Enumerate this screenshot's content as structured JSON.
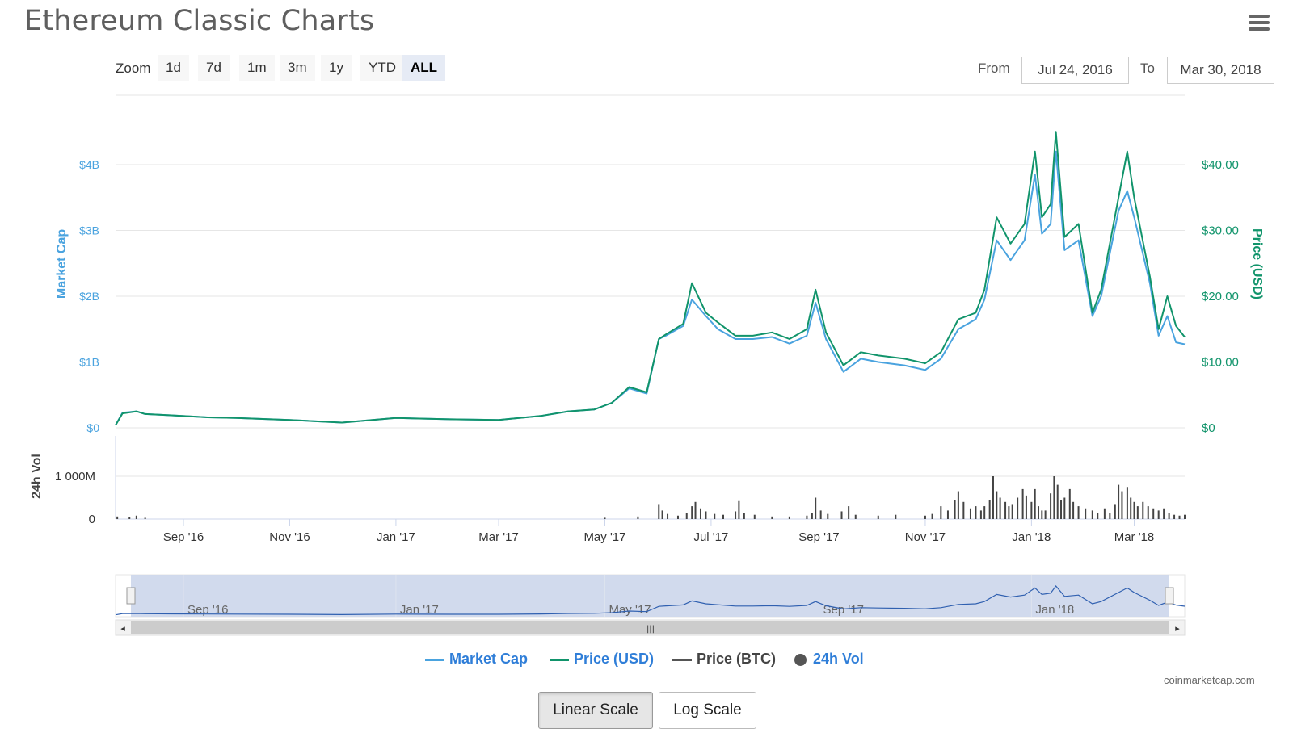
{
  "title": "Ethereum Classic Charts",
  "zoom": {
    "label": "Zoom",
    "buttons": [
      "1d",
      "7d",
      "1m",
      "3m",
      "1y",
      "YTD",
      "ALL"
    ],
    "active": "ALL"
  },
  "range": {
    "from_label": "From",
    "from_value": "Jul 24, 2016",
    "to_label": "To",
    "to_value": "Mar 30, 2018"
  },
  "credit": "coinmarketcap.com",
  "scale_buttons": {
    "linear": "Linear Scale",
    "log": "Log Scale",
    "active": "linear"
  },
  "colors": {
    "market_cap": "#4aa3df",
    "price_usd": "#11946b",
    "price_btc": "#555555",
    "volume": "#444444",
    "legend_text": "#2f7ed8",
    "navigator_fill": "#ccd6eb",
    "navigator_line": "#3060b0"
  },
  "chart_data": {
    "type": "line",
    "x_range": [
      "2016-07-24",
      "2018-03-30"
    ],
    "x_ticks": [
      {
        "date": "2016-09-01",
        "label": "Sep '16"
      },
      {
        "date": "2016-11-01",
        "label": "Nov '16"
      },
      {
        "date": "2017-01-01",
        "label": "Jan '17"
      },
      {
        "date": "2017-03-01",
        "label": "Mar '17"
      },
      {
        "date": "2017-05-01",
        "label": "May '17"
      },
      {
        "date": "2017-07-01",
        "label": "Jul '17"
      },
      {
        "date": "2017-09-01",
        "label": "Sep '17"
      },
      {
        "date": "2017-11-01",
        "label": "Nov '17"
      },
      {
        "date": "2018-01-01",
        "label": "Jan '18"
      },
      {
        "date": "2018-03-01",
        "label": "Mar '18"
      }
    ],
    "navigator_ticks": [
      {
        "date": "2016-09-01",
        "label": "Sep '16"
      },
      {
        "date": "2017-01-01",
        "label": "Jan '17"
      },
      {
        "date": "2017-05-01",
        "label": "May '17"
      },
      {
        "date": "2017-09-01",
        "label": "Sep '17"
      },
      {
        "date": "2018-01-01",
        "label": "Jan '18"
      }
    ],
    "y_left": {
      "label": "Market Cap",
      "ylim": [
        0,
        4000000000
      ],
      "ticks": [
        "$0",
        "$1B",
        "$2B",
        "$3B",
        "$4B"
      ]
    },
    "y_right": {
      "label": "Price (USD)",
      "ylim": [
        0,
        40
      ],
      "ticks": [
        "$0",
        "$10.00",
        "$20.00",
        "$30.00",
        "$40.00"
      ]
    },
    "volume_axis": {
      "label": "24h Vol",
      "ylim": [
        0,
        1000000000
      ],
      "ticks": [
        "0",
        "1 000M"
      ]
    },
    "series": [
      {
        "name": "Market Cap",
        "axis": "left",
        "points": [
          [
            "2016-07-24",
            40000000
          ],
          [
            "2016-07-28",
            230000000
          ],
          [
            "2016-08-05",
            250000000
          ],
          [
            "2016-08-10",
            210000000
          ],
          [
            "2016-08-25",
            190000000
          ],
          [
            "2016-09-15",
            160000000
          ],
          [
            "2016-10-01",
            150000000
          ],
          [
            "2016-11-01",
            120000000
          ],
          [
            "2016-12-01",
            80000000
          ],
          [
            "2017-01-01",
            150000000
          ],
          [
            "2017-02-01",
            130000000
          ],
          [
            "2017-03-01",
            120000000
          ],
          [
            "2017-03-25",
            180000000
          ],
          [
            "2017-04-10",
            250000000
          ],
          [
            "2017-04-25",
            280000000
          ],
          [
            "2017-05-05",
            380000000
          ],
          [
            "2017-05-15",
            600000000
          ],
          [
            "2017-05-25",
            520000000
          ],
          [
            "2017-06-01",
            1350000000
          ],
          [
            "2017-06-05",
            1400000000
          ],
          [
            "2017-06-15",
            1550000000
          ],
          [
            "2017-06-20",
            1950000000
          ],
          [
            "2017-06-28",
            1700000000
          ],
          [
            "2017-07-05",
            1500000000
          ],
          [
            "2017-07-15",
            1350000000
          ],
          [
            "2017-07-25",
            1350000000
          ],
          [
            "2017-08-05",
            1380000000
          ],
          [
            "2017-08-15",
            1280000000
          ],
          [
            "2017-08-25",
            1400000000
          ],
          [
            "2017-08-30",
            1900000000
          ],
          [
            "2017-09-05",
            1350000000
          ],
          [
            "2017-09-15",
            850000000
          ],
          [
            "2017-09-25",
            1050000000
          ],
          [
            "2017-10-05",
            1000000000
          ],
          [
            "2017-10-20",
            950000000
          ],
          [
            "2017-11-01",
            880000000
          ],
          [
            "2017-11-10",
            1050000000
          ],
          [
            "2017-11-20",
            1500000000
          ],
          [
            "2017-11-30",
            1650000000
          ],
          [
            "2017-12-05",
            1950000000
          ],
          [
            "2017-12-12",
            2850000000
          ],
          [
            "2017-12-20",
            2550000000
          ],
          [
            "2017-12-28",
            2850000000
          ],
          [
            "2018-01-03",
            3850000000
          ],
          [
            "2018-01-07",
            2950000000
          ],
          [
            "2018-01-12",
            3100000000
          ],
          [
            "2018-01-15",
            4200000000
          ],
          [
            "2018-01-20",
            2700000000
          ],
          [
            "2018-01-28",
            2850000000
          ],
          [
            "2018-02-05",
            1700000000
          ],
          [
            "2018-02-10",
            2000000000
          ],
          [
            "2018-02-20",
            3300000000
          ],
          [
            "2018-02-25",
            3600000000
          ],
          [
            "2018-03-01",
            3200000000
          ],
          [
            "2018-03-10",
            2200000000
          ],
          [
            "2018-03-15",
            1400000000
          ],
          [
            "2018-03-20",
            1700000000
          ],
          [
            "2018-03-25",
            1300000000
          ],
          [
            "2018-03-30",
            1270000000
          ]
        ]
      },
      {
        "name": "Price (USD)",
        "axis": "right",
        "points": [
          [
            "2016-07-24",
            0.4
          ],
          [
            "2016-07-28",
            2.2
          ],
          [
            "2016-08-05",
            2.5
          ],
          [
            "2016-08-10",
            2.1
          ],
          [
            "2016-08-25",
            1.9
          ],
          [
            "2016-09-15",
            1.6
          ],
          [
            "2016-10-01",
            1.5
          ],
          [
            "2016-11-01",
            1.2
          ],
          [
            "2016-12-01",
            0.8
          ],
          [
            "2017-01-01",
            1.5
          ],
          [
            "2017-02-01",
            1.3
          ],
          [
            "2017-03-01",
            1.2
          ],
          [
            "2017-03-25",
            1.8
          ],
          [
            "2017-04-10",
            2.5
          ],
          [
            "2017-04-25",
            2.8
          ],
          [
            "2017-05-05",
            3.8
          ],
          [
            "2017-05-15",
            6.2
          ],
          [
            "2017-05-25",
            5.4
          ],
          [
            "2017-06-01",
            13.5
          ],
          [
            "2017-06-05",
            14.2
          ],
          [
            "2017-06-15",
            15.8
          ],
          [
            "2017-06-20",
            22.0
          ],
          [
            "2017-06-28",
            17.5
          ],
          [
            "2017-07-05",
            16.0
          ],
          [
            "2017-07-15",
            14.0
          ],
          [
            "2017-07-25",
            14.0
          ],
          [
            "2017-08-05",
            14.5
          ],
          [
            "2017-08-15",
            13.5
          ],
          [
            "2017-08-25",
            15.0
          ],
          [
            "2017-08-30",
            21.0
          ],
          [
            "2017-09-05",
            14.5
          ],
          [
            "2017-09-15",
            9.5
          ],
          [
            "2017-09-25",
            11.5
          ],
          [
            "2017-10-05",
            11.0
          ],
          [
            "2017-10-20",
            10.5
          ],
          [
            "2017-11-01",
            9.8
          ],
          [
            "2017-11-10",
            11.5
          ],
          [
            "2017-11-20",
            16.5
          ],
          [
            "2017-11-30",
            17.5
          ],
          [
            "2017-12-05",
            21.0
          ],
          [
            "2017-12-12",
            32.0
          ],
          [
            "2017-12-20",
            28.0
          ],
          [
            "2017-12-28",
            31.0
          ],
          [
            "2018-01-03",
            42.0
          ],
          [
            "2018-01-07",
            32.0
          ],
          [
            "2018-01-12",
            34.0
          ],
          [
            "2018-01-15",
            45.0
          ],
          [
            "2018-01-20",
            29.0
          ],
          [
            "2018-01-28",
            31.0
          ],
          [
            "2018-02-05",
            17.5
          ],
          [
            "2018-02-10",
            21.0
          ],
          [
            "2018-02-20",
            35.0
          ],
          [
            "2018-02-25",
            42.0
          ],
          [
            "2018-03-01",
            35.0
          ],
          [
            "2018-03-10",
            23.0
          ],
          [
            "2018-03-15",
            15.0
          ],
          [
            "2018-03-20",
            20.0
          ],
          [
            "2018-03-25",
            15.5
          ],
          [
            "2018-03-30",
            13.8
          ]
        ]
      },
      {
        "name": "24h Vol",
        "axis": "volume",
        "points": [
          [
            "2016-07-25",
            60000000
          ],
          [
            "2016-08-01",
            40000000
          ],
          [
            "2016-08-05",
            80000000
          ],
          [
            "2016-08-10",
            30000000
          ],
          [
            "2017-05-01",
            30000000
          ],
          [
            "2017-05-20",
            60000000
          ],
          [
            "2017-06-01",
            350000000
          ],
          [
            "2017-06-03",
            200000000
          ],
          [
            "2017-06-06",
            120000000
          ],
          [
            "2017-06-12",
            80000000
          ],
          [
            "2017-06-17",
            150000000
          ],
          [
            "2017-06-20",
            300000000
          ],
          [
            "2017-06-22",
            400000000
          ],
          [
            "2017-06-25",
            250000000
          ],
          [
            "2017-06-28",
            180000000
          ],
          [
            "2017-07-03",
            120000000
          ],
          [
            "2017-07-08",
            100000000
          ],
          [
            "2017-07-15",
            180000000
          ],
          [
            "2017-07-17",
            420000000
          ],
          [
            "2017-07-20",
            150000000
          ],
          [
            "2017-07-26",
            100000000
          ],
          [
            "2017-08-05",
            60000000
          ],
          [
            "2017-08-15",
            60000000
          ],
          [
            "2017-08-25",
            80000000
          ],
          [
            "2017-08-28",
            150000000
          ],
          [
            "2017-08-30",
            500000000
          ],
          [
            "2017-09-02",
            200000000
          ],
          [
            "2017-09-06",
            120000000
          ],
          [
            "2017-09-14",
            180000000
          ],
          [
            "2017-09-18",
            300000000
          ],
          [
            "2017-09-22",
            100000000
          ],
          [
            "2017-10-05",
            80000000
          ],
          [
            "2017-10-15",
            100000000
          ],
          [
            "2017-11-01",
            80000000
          ],
          [
            "2017-11-05",
            120000000
          ],
          [
            "2017-11-10",
            300000000
          ],
          [
            "2017-11-14",
            200000000
          ],
          [
            "2017-11-18",
            450000000
          ],
          [
            "2017-11-20",
            650000000
          ],
          [
            "2017-11-23",
            400000000
          ],
          [
            "2017-11-27",
            250000000
          ],
          [
            "2017-11-30",
            300000000
          ],
          [
            "2017-12-03",
            200000000
          ],
          [
            "2017-12-05",
            300000000
          ],
          [
            "2017-12-08",
            450000000
          ],
          [
            "2017-12-10",
            1000000000
          ],
          [
            "2017-12-12",
            650000000
          ],
          [
            "2017-12-14",
            500000000
          ],
          [
            "2017-12-17",
            400000000
          ],
          [
            "2017-12-19",
            300000000
          ],
          [
            "2017-12-21",
            350000000
          ],
          [
            "2017-12-24",
            500000000
          ],
          [
            "2017-12-27",
            700000000
          ],
          [
            "2017-12-29",
            550000000
          ],
          [
            "2018-01-01",
            400000000
          ],
          [
            "2018-01-03",
            700000000
          ],
          [
            "2018-01-05",
            300000000
          ],
          [
            "2018-01-07",
            200000000
          ],
          [
            "2018-01-09",
            200000000
          ],
          [
            "2018-01-12",
            600000000
          ],
          [
            "2018-01-14",
            1000000000
          ],
          [
            "2018-01-16",
            800000000
          ],
          [
            "2018-01-18",
            450000000
          ],
          [
            "2018-01-20",
            500000000
          ],
          [
            "2018-01-23",
            700000000
          ],
          [
            "2018-01-25",
            400000000
          ],
          [
            "2018-01-28",
            300000000
          ],
          [
            "2018-02-01",
            250000000
          ],
          [
            "2018-02-05",
            200000000
          ],
          [
            "2018-02-08",
            150000000
          ],
          [
            "2018-02-12",
            250000000
          ],
          [
            "2018-02-15",
            150000000
          ],
          [
            "2018-02-18",
            350000000
          ],
          [
            "2018-02-20",
            800000000
          ],
          [
            "2018-02-22",
            650000000
          ],
          [
            "2018-02-25",
            750000000
          ],
          [
            "2018-02-27",
            500000000
          ],
          [
            "2018-03-01",
            400000000
          ],
          [
            "2018-03-03",
            300000000
          ],
          [
            "2018-03-06",
            400000000
          ],
          [
            "2018-03-09",
            300000000
          ],
          [
            "2018-03-12",
            250000000
          ],
          [
            "2018-03-15",
            200000000
          ],
          [
            "2018-03-18",
            250000000
          ],
          [
            "2018-03-21",
            150000000
          ],
          [
            "2018-03-24",
            100000000
          ],
          [
            "2018-03-27",
            80000000
          ],
          [
            "2018-03-30",
            100000000
          ]
        ]
      }
    ],
    "legend": [
      "Market Cap",
      "Price (USD)",
      "Price (BTC)",
      "24h Vol"
    ],
    "legend_placement": "bottom",
    "grid": true
  }
}
